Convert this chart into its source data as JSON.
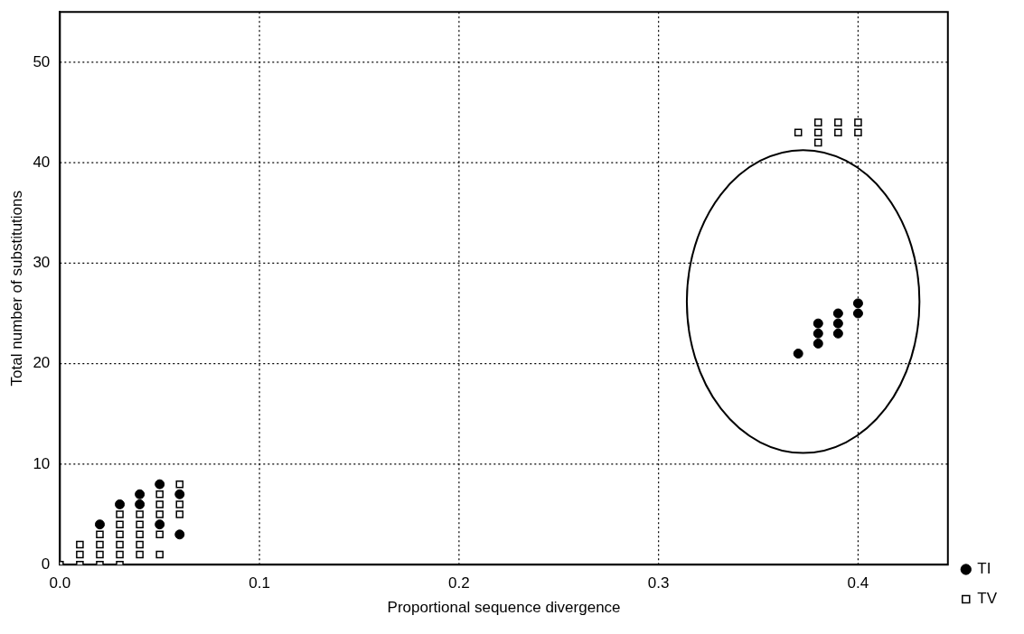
{
  "chart_data": {
    "type": "scatter",
    "xlabel": "Proportional sequence divergence",
    "ylabel": "Total number of substitutions",
    "xlim": [
      0,
      0.445
    ],
    "xticks": [
      {
        "value": 0,
        "label": "0.0"
      },
      0.1,
      0.2,
      0.3,
      0.4
    ],
    "ylim": [
      0,
      55
    ],
    "yticks": [
      0,
      10,
      20,
      30,
      40,
      50
    ],
    "grid": true,
    "legend": "bottom right",
    "series": [
      {
        "name": "TI",
        "color": "#000000",
        "marker": "circle",
        "x": [
          0.02,
          0.03,
          0.04,
          0.04,
          0.05,
          0.05,
          0.06,
          0.06,
          0.37,
          0.38,
          0.38,
          0.38,
          0.39,
          0.39,
          0.39,
          0.4,
          0.4
        ],
        "values": [
          4,
          6,
          6,
          7,
          8,
          4,
          7,
          3,
          21,
          22,
          23,
          24,
          23,
          24,
          25,
          25,
          26
        ]
      },
      {
        "name": "TV",
        "color": "#000000",
        "marker": "square",
        "x": [
          0,
          0.01,
          0.01,
          0.01,
          0.02,
          0.02,
          0.02,
          0.02,
          0.03,
          0.03,
          0.03,
          0.03,
          0.03,
          0.03,
          0.04,
          0.04,
          0.04,
          0.04,
          0.04,
          0.05,
          0.05,
          0.05,
          0.05,
          0.05,
          0.06,
          0.06,
          0.06,
          0.37,
          0.38,
          0.38,
          0.38,
          0.39,
          0.39,
          0.4,
          0.4
        ],
        "values": [
          0,
          0,
          1,
          2,
          0,
          1,
          2,
          3,
          0,
          1,
          2,
          3,
          4,
          5,
          1,
          2,
          3,
          4,
          5,
          1,
          3,
          5,
          6,
          7,
          5,
          6,
          8,
          43,
          42,
          43,
          44,
          43,
          44,
          43,
          44
        ]
      }
    ]
  }
}
